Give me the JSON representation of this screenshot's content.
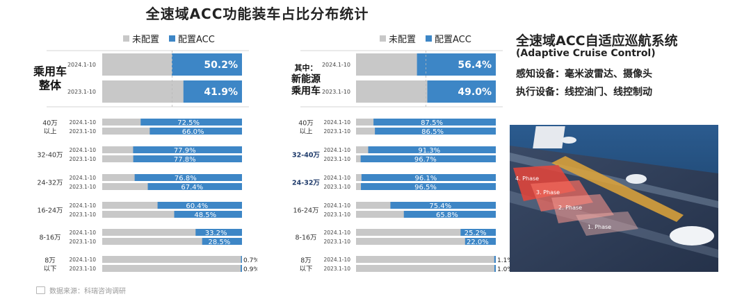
{
  "page": {
    "title": "全速域ACC功能装车占比分布统计",
    "source": "数据来源：科瑞咨询调研",
    "source_icon": "chart-icon"
  },
  "colors": {
    "unconfigured": "#c8c8c8",
    "configured": "#3d86c6",
    "divider": "#c9c9c9"
  },
  "legend": {
    "unconfigured": "未配置",
    "configured": "配置ACC"
  },
  "chart_data": [
    {
      "type": "bar",
      "stacked_horizontal_percent": true,
      "groups": [
        {
          "label": [
            "乘用车",
            "整体"
          ],
          "years": [
            "2024.1-10",
            "2023.1-10"
          ],
          "values": [
            50.2,
            41.9
          ],
          "labels": [
            "50.2%",
            "41.9%"
          ]
        },
        {
          "label": [
            "40万",
            "以上"
          ],
          "years": [
            "2024.1-10",
            "2023.1-10"
          ],
          "values": [
            72.5,
            66.0
          ],
          "labels": [
            "72.5%",
            "66.0%"
          ]
        },
        {
          "label": [
            "32-40万"
          ],
          "years": [
            "2024.1-10",
            "2023.1-10"
          ],
          "values": [
            77.9,
            77.8
          ],
          "labels": [
            "77.9%",
            "77.8%"
          ]
        },
        {
          "label": [
            "24-32万"
          ],
          "years": [
            "2024.1-10",
            "2023.1-10"
          ],
          "values": [
            76.8,
            67.4
          ],
          "labels": [
            "76.8%",
            "67.4%"
          ]
        },
        {
          "label": [
            "16-24万"
          ],
          "years": [
            "2024.1-10",
            "2023.1-10"
          ],
          "values": [
            60.4,
            48.5
          ],
          "labels": [
            "60.4%",
            "48.5%"
          ]
        },
        {
          "label": [
            "8-16万"
          ],
          "years": [
            "2024.1-10",
            "2023.1-10"
          ],
          "values": [
            33.2,
            28.5
          ],
          "labels": [
            "33.2%",
            "28.5%"
          ]
        },
        {
          "label": [
            "8万",
            "以下"
          ],
          "years": [
            "2024.1-10",
            "2023.1-10"
          ],
          "values": [
            0.7,
            0.9
          ],
          "labels": [
            "0.7%",
            "0.9%"
          ]
        }
      ],
      "series": [
        {
          "name": "未配置"
        },
        {
          "name": "配置ACC"
        }
      ],
      "legend": "top"
    },
    {
      "type": "bar",
      "stacked_horizontal_percent": true,
      "groups": [
        {
          "label": [
            "其中：",
            "新能源",
            "乘用车"
          ],
          "years": [
            "2024.1-10",
            "2023.1-10"
          ],
          "values": [
            56.4,
            49.0
          ],
          "labels": [
            "56.4%",
            "49.0%"
          ]
        },
        {
          "label": [
            "40万",
            "以上"
          ],
          "years": [
            "2024.1-10",
            "2023.1-10"
          ],
          "values": [
            87.5,
            86.5
          ],
          "labels": [
            "87.5%",
            "86.5%"
          ]
        },
        {
          "label": [
            "32-40万"
          ],
          "years": [
            "2024.1-10",
            "2023.1-10"
          ],
          "values": [
            91.3,
            96.7
          ],
          "labels": [
            "91.3%",
            "96.7%"
          ]
        },
        {
          "label": [
            "24-32万"
          ],
          "years": [
            "2024.1-10",
            "2023.1-10"
          ],
          "values": [
            96.1,
            96.5
          ],
          "labels": [
            "96.1%",
            "96.5%"
          ]
        },
        {
          "label": [
            "16-24万"
          ],
          "years": [
            "2024.1-10",
            "2023.1-10"
          ],
          "values": [
            75.4,
            65.8
          ],
          "labels": [
            "75.4%",
            "65.8%"
          ]
        },
        {
          "label": [
            "8-16万"
          ],
          "years": [
            "2024.1-10",
            "2023.1-10"
          ],
          "values": [
            25.2,
            22.0
          ],
          "labels": [
            "25.2%",
            "22.0%"
          ]
        },
        {
          "label": [
            "8万",
            "以下"
          ],
          "years": [
            "2024.1-10",
            "2023.1-10"
          ],
          "values": [
            1.1,
            1.0
          ],
          "labels": [
            "1.1%",
            "1.0%"
          ]
        }
      ],
      "series": [
        {
          "name": "未配置"
        },
        {
          "name": "配置ACC"
        }
      ],
      "legend": "top"
    }
  ],
  "side": {
    "title": "全速域ACC自适应巡航系统",
    "subtitle": "(Adaptive Cruise Control)",
    "sensing": "感知设备：毫米波雷达、摄像头",
    "actuation": "执行设备：线控油门、线控制动",
    "illustration": {
      "phases": [
        "4. Phase",
        "3. Phase",
        "2. Phase",
        "1. Phase"
      ]
    }
  }
}
